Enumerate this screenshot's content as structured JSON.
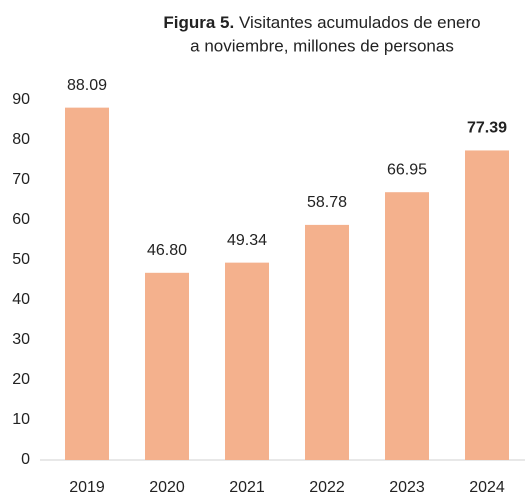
{
  "chart_data": {
    "type": "bar",
    "figure_label": "Figura 5.",
    "title": [
      "Visitantes acumulados de enero",
      "a noviembre, millones de personas"
    ],
    "categories": [
      "2019",
      "2020",
      "2021",
      "2022",
      "2023",
      "2024"
    ],
    "values": [
      88.09,
      46.8,
      49.34,
      58.78,
      66.95,
      77.39
    ],
    "value_labels": [
      "88.09",
      "46.80",
      "49.34",
      "58.78",
      "66.95",
      "77.39"
    ],
    "color": "#f4b18d",
    "ylim": [
      0,
      90
    ],
    "yticks": [
      0,
      10,
      20,
      30,
      40,
      50,
      60,
      70,
      80,
      90
    ],
    "grid": false
  }
}
